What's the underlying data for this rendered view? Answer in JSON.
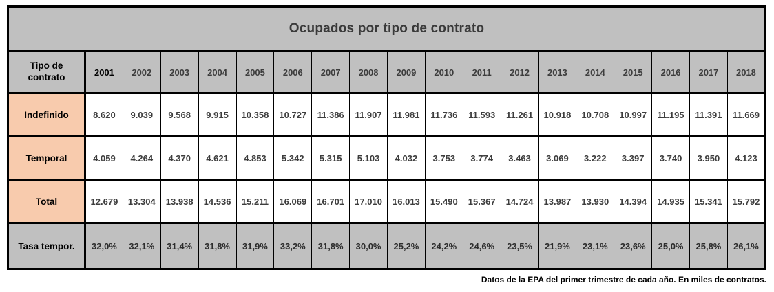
{
  "title": "Ocupados por tipo de contrato",
  "footer_note": "Datos de la EPA del primer trimestre de cada año. En miles de contratos.",
  "colors": {
    "band_gray": "#c0c0c0",
    "label_peach": "#f8cbad",
    "cell_white": "#ffffff",
    "border_black": "#000000",
    "title_text": "#3a3a3a"
  },
  "chart_data": {
    "type": "table",
    "corner_label": "Tipo de contrato",
    "years": [
      "2001",
      "2002",
      "2003",
      "2004",
      "2005",
      "2006",
      "2007",
      "2008",
      "2009",
      "2010",
      "2011",
      "2012",
      "2013",
      "2014",
      "2015",
      "2016",
      "2017",
      "2018"
    ],
    "rows": [
      {
        "label": "Indefinido",
        "values": [
          "8.620",
          "9.039",
          "9.568",
          "9.915",
          "10.358",
          "10.727",
          "11.386",
          "11.907",
          "11.981",
          "11.736",
          "11.593",
          "11.261",
          "10.918",
          "10.708",
          "10.997",
          "11.195",
          "11.391",
          "11.669"
        ]
      },
      {
        "label": "Temporal",
        "values": [
          "4.059",
          "4.264",
          "4.370",
          "4.621",
          "4.853",
          "5.342",
          "5.315",
          "5.103",
          "4.032",
          "3.753",
          "3.774",
          "3.463",
          "3.069",
          "3.222",
          "3.397",
          "3.740",
          "3.950",
          "4.123"
        ]
      },
      {
        "label": "Total",
        "values": [
          "12.679",
          "13.304",
          "13.938",
          "14.536",
          "15.211",
          "16.069",
          "16.701",
          "17.010",
          "16.013",
          "15.490",
          "15.367",
          "14.724",
          "13.987",
          "13.930",
          "14.394",
          "14.935",
          "15.341",
          "15.792"
        ]
      },
      {
        "label": "Tasa tempor.",
        "values": [
          "32,0%",
          "32,1%",
          "31,4%",
          "31,8%",
          "31,9%",
          "33,2%",
          "31,8%",
          "30,0%",
          "25,2%",
          "24,2%",
          "24,6%",
          "23,5%",
          "21,9%",
          "23,1%",
          "23,6%",
          "25,0%",
          "25,8%",
          "26,1%"
        ]
      }
    ]
  }
}
